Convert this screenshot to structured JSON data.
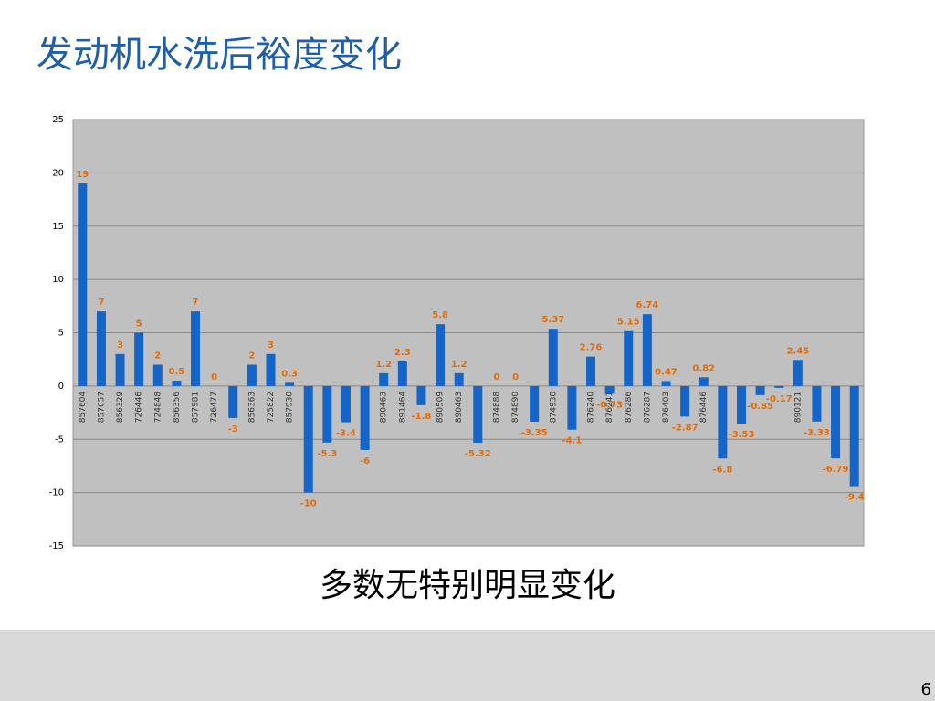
{
  "chart_data": {
    "type": "bar",
    "title": "发动机水洗后裕度变化",
    "categories": [
      "857604",
      "857657",
      "856329",
      "726446",
      "724848",
      "856356",
      "857981",
      "726477",
      null,
      "856363",
      "725822",
      "857930",
      null,
      null,
      null,
      null,
      "890463",
      "891464",
      null,
      "890509",
      "890463",
      null,
      "874888",
      "874890",
      null,
      "874930",
      null,
      "876240",
      "876241",
      "876286",
      "876287",
      "876403",
      null,
      "876446",
      null,
      null,
      null,
      null,
      "890121",
      null,
      null,
      null
    ],
    "values": [
      19,
      7,
      3,
      5,
      2,
      0.5,
      7,
      0,
      -3,
      2,
      3,
      0.3,
      -10,
      -5.3,
      -3.4,
      -6,
      1.2,
      2.3,
      -1.8,
      5.8,
      1.2,
      -5.32,
      0,
      0,
      -3.35,
      5.37,
      -4.1,
      2.76,
      -0.73,
      5.15,
      6.74,
      0.47,
      -2.87,
      0.82,
      -6.8,
      -3.53,
      -0.85,
      -0.17,
      2.45,
      -3.33,
      -6.79,
      -9.4
    ],
    "color": "#1565c8",
    "label_color": "#e36c09",
    "ylim": [
      -15,
      25
    ],
    "yticks": [
      -15,
      -10,
      -5,
      0,
      5,
      10,
      15,
      20,
      25
    ],
    "grid": true
  },
  "caption": "多数无特别明显变化",
  "page_number": 6
}
